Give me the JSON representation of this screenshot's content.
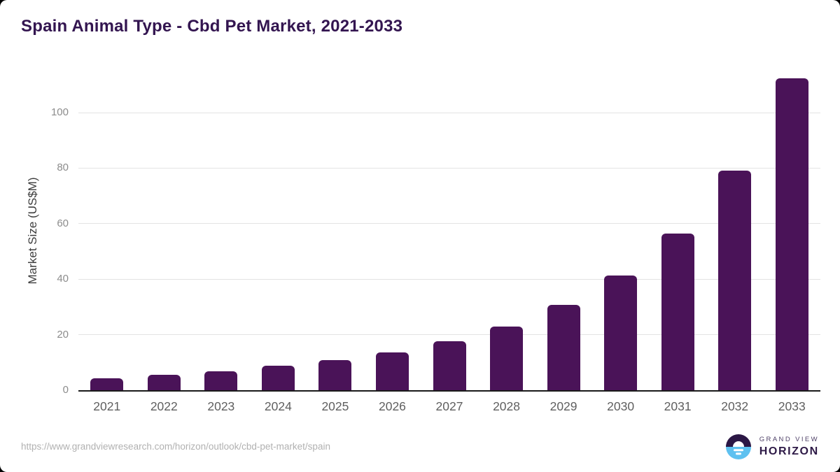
{
  "chart_data": {
    "type": "bar",
    "title": "Spain Animal Type - Cbd Pet Market, 2021-2033",
    "categories": [
      "2021",
      "2022",
      "2023",
      "2024",
      "2025",
      "2026",
      "2027",
      "2028",
      "2029",
      "2030",
      "2031",
      "2032",
      "2033"
    ],
    "values": [
      4.2,
      5.5,
      6.8,
      8.7,
      10.9,
      13.6,
      17.7,
      23.0,
      30.8,
      41.3,
      56.5,
      79.0,
      112.4
    ],
    "xlabel": "",
    "ylabel": "Market Size (US$M)",
    "ylim": [
      0,
      115.4
    ],
    "yticks": [
      0,
      20,
      40,
      60,
      80,
      100
    ],
    "grid": true,
    "legend": false,
    "bar_color": "#4a1358"
  },
  "colors": {
    "title": "#331550",
    "bar": "#4a1358",
    "axis_line": "#1a1a1a",
    "gridline": "#e3e3e3",
    "y_tick": "#8c8c8c",
    "x_tick": "#5f5f5f",
    "url": "#b1b1b1",
    "logo_purple": "#2b1745",
    "logo_blue": "#5ec1f0"
  },
  "footer": {
    "source_url": "https://www.grandviewresearch.com/horizon/outlook/cbd-pet-market/spain",
    "logo": {
      "line1": "GRAND VIEW",
      "line2": "HORIZON"
    }
  }
}
